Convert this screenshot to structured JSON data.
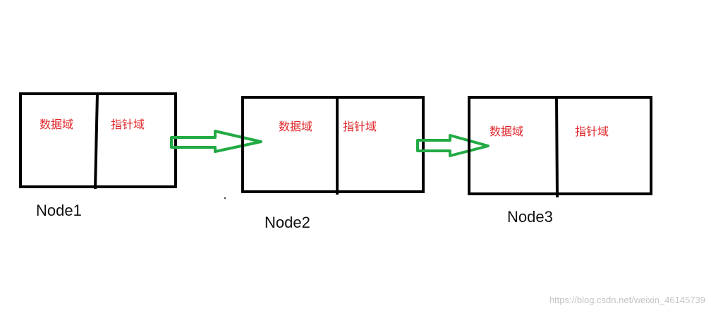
{
  "nodes": [
    {
      "caption": "Node1",
      "data_label": "数据域",
      "pointer_label": "指针域"
    },
    {
      "caption": "Node2",
      "data_label": "数据域",
      "pointer_label": "指针域"
    },
    {
      "caption": "Node3",
      "data_label": "数据域",
      "pointer_label": "指针域"
    }
  ],
  "watermark": "https://blog.csdn.net/weixin_46145739",
  "colors": {
    "box_stroke": "#000000",
    "label": "#e0262a",
    "arrow": "#22aa44",
    "caption": "#111111",
    "watermark": "#c4c4c4"
  }
}
